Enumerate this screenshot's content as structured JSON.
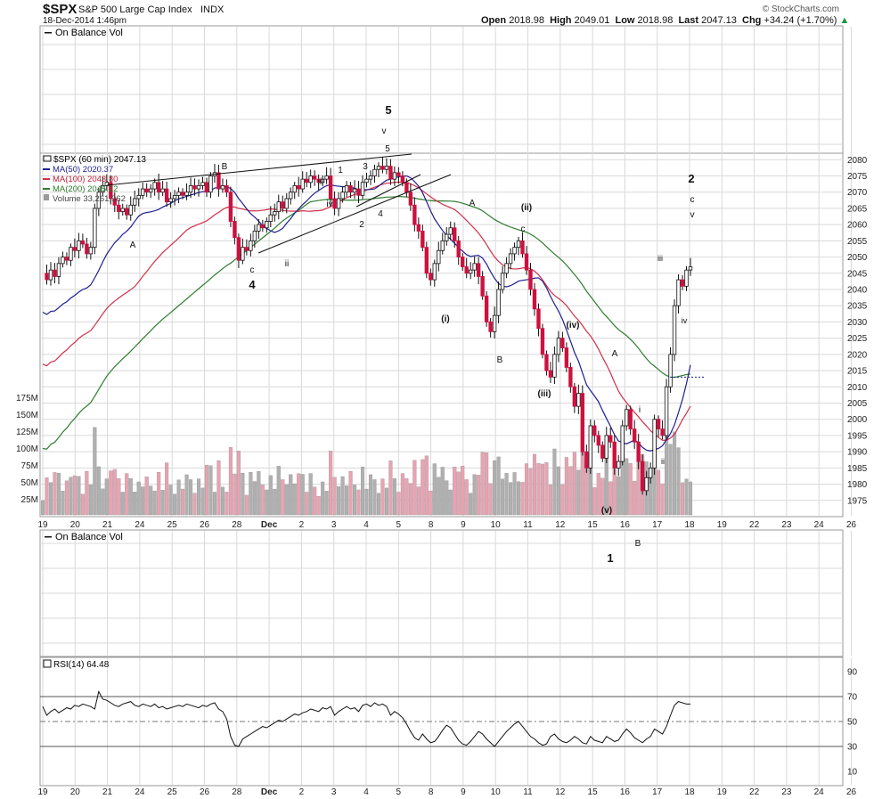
{
  "header": {
    "symbol": "$SPX",
    "name": "S&P 500 Large Cap Index",
    "exchange": "INDX",
    "datetime": "18-Dec-2014 1:46pm",
    "brand": "© StockCharts.com",
    "open_label": "Open",
    "open": "2018.98",
    "high_label": "High",
    "high": "2049.01",
    "low_label": "Low",
    "low": "2018.98",
    "last_label": "Last",
    "last": "2047.13",
    "chg_label": "Chg",
    "chg": "+34.24 (+1.70%)"
  },
  "obv_panel_title": "On Balance Vol",
  "obv_lower_title": "On Balance Vol",
  "legend": {
    "price": "$SPX (60 min) 2047.13",
    "ma50": "MA(50) 2020.37",
    "ma100": "MA(100) 2043.80",
    "ma200": "MA(200) 2045.22",
    "volume": "Volume 33,261,962"
  },
  "rsi_legend": "RSI(14) 64.48",
  "colors": {
    "up": "#ffffff",
    "down": "#cc1141",
    "ma50": "#1f1f8f",
    "ma100": "#d0304a",
    "ma200": "#2e7d2e",
    "vol_up": "#b0b0b0",
    "vol_down": "#e8a3b3",
    "grid": "#d9d9d9",
    "rsi_line": "#111111",
    "accent_up": "#1a9641"
  },
  "chart_data": {
    "type": "candlestick",
    "title": "$SPX S&P 500 Large Cap Index INDX",
    "interval": "60 min",
    "ylim": [
      1970,
      2082
    ],
    "y_ticks": [
      1975,
      1980,
      1985,
      1990,
      1995,
      2000,
      2005,
      2010,
      2015,
      2020,
      2025,
      2030,
      2035,
      2040,
      2045,
      2050,
      2055,
      2060,
      2065,
      2070,
      2075,
      2080
    ],
    "x_tick_labels": [
      "19",
      "20",
      "21",
      "24",
      "25",
      "26",
      "28",
      "Dec",
      "2",
      "3",
      "4",
      "5",
      "8",
      "9",
      "10",
      "11",
      "12",
      "15",
      "16",
      "17",
      "18",
      "19",
      "22",
      "23",
      "24",
      "26"
    ],
    "volume_ticks": [
      "25M",
      "50M",
      "75M",
      "100M",
      "125M",
      "150M",
      "175M"
    ],
    "close": [
      2045,
      2043,
      2046,
      2044,
      2048,
      2050,
      2049,
      2053,
      2052,
      2055,
      2054,
      2051,
      2053,
      2065,
      2070,
      2072,
      2073,
      2068,
      2066,
      2064,
      2065,
      2063,
      2066,
      2068,
      2069,
      2071,
      2070,
      2071,
      2073,
      2070,
      2071,
      2067,
      2068,
      2069,
      2070,
      2069,
      2070,
      2072,
      2071,
      2072,
      2073,
      2070,
      2075,
      2076,
      2071,
      2072,
      2070,
      2061,
      2056,
      2049,
      2053,
      2052,
      2055,
      2058,
      2060,
      2059,
      2061,
      2063,
      2064,
      2067,
      2065,
      2068,
      2070,
      2072,
      2071,
      2074,
      2073,
      2075,
      2074,
      2073,
      2074,
      2075,
      2068,
      2065,
      2068,
      2070,
      2072,
      2070,
      2071,
      2069,
      2073,
      2074,
      2075,
      2077,
      2078,
      2077,
      2078,
      2074,
      2076,
      2075,
      2073,
      2070,
      2066,
      2060,
      2058,
      2053,
      2045,
      2043,
      2048,
      2052,
      2055,
      2057,
      2059,
      2055,
      2050,
      2047,
      2045,
      2046,
      2048,
      2044,
      2038,
      2030,
      2027,
      2032,
      2040,
      2045,
      2048,
      2051,
      2053,
      2055,
      2051,
      2046,
      2040,
      2034,
      2028,
      2020,
      2015,
      2013,
      2020,
      2025,
      2022,
      2016,
      2010,
      2004,
      2008,
      1990,
      1985,
      1998,
      1995,
      1992,
      1988,
      1995,
      1993,
      1985,
      1987,
      1998,
      2003,
      1997,
      1993,
      1987,
      1978,
      1982,
      1985,
      2000,
      1997,
      1995,
      2010,
      2020,
      2035,
      2043,
      2041,
      2046,
      2047
    ],
    "annotations": [
      "5",
      "v",
      "5",
      "B",
      "1",
      "3",
      "iii",
      "iv",
      "2",
      "4",
      "c",
      "4",
      "ii",
      "A",
      "(ii)",
      "A",
      "c",
      "(i)",
      "B",
      "(iv)",
      "(iii)",
      "A",
      "(v)",
      "i",
      "ii",
      "iii",
      "iv",
      "2",
      "c",
      "v",
      "1",
      "B"
    ],
    "ma_legend": [
      "MA(50) 2020.37",
      "MA(100) 2043.80",
      "MA(200) 2045.22"
    ],
    "rsi": {
      "ylim": [
        0,
        100
      ],
      "y_ticks": [
        10,
        30,
        50,
        70,
        90
      ],
      "overbought": 70,
      "oversold": 30,
      "values": [
        62,
        55,
        58,
        60,
        57,
        59,
        61,
        60,
        63,
        62,
        64,
        63,
        62,
        60,
        74,
        68,
        67,
        65,
        63,
        62,
        64,
        65,
        66,
        63,
        62,
        64,
        63,
        62,
        64,
        61,
        62,
        60,
        61,
        62,
        63,
        62,
        64,
        63,
        62,
        61,
        63,
        62,
        64,
        65,
        60,
        58,
        52,
        38,
        31,
        30,
        36,
        38,
        40,
        42,
        44,
        46,
        45,
        47,
        49,
        51,
        50,
        52,
        54,
        56,
        55,
        57,
        58,
        60,
        59,
        58,
        61,
        60,
        62,
        55,
        58,
        60,
        62,
        60,
        61,
        58,
        63,
        64,
        62,
        65,
        63,
        64,
        62,
        55,
        58,
        56,
        53,
        48,
        42,
        37,
        35,
        40,
        36,
        33,
        34,
        38,
        43,
        47,
        45,
        40,
        35,
        32,
        31,
        34,
        38,
        42,
        40,
        36,
        33,
        30,
        34,
        38,
        42,
        45,
        48,
        50,
        46,
        42,
        38,
        36,
        33,
        31,
        32,
        38,
        40,
        36,
        34,
        33,
        35,
        38,
        36,
        33,
        32,
        38,
        35,
        34,
        33,
        38,
        36,
        34,
        35,
        40,
        44,
        41,
        37,
        35,
        33,
        36,
        38,
        44,
        42,
        40,
        46,
        55,
        63,
        66,
        65,
        64,
        64
      ]
    }
  }
}
